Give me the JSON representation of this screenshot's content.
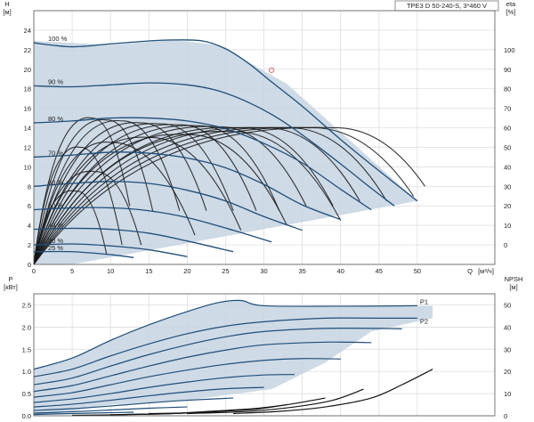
{
  "title": "TPE3 D 50-240-S, 3*460 V",
  "colors": {
    "region_fill": "#c5d3e2",
    "speed_curve": "#1f4e79",
    "efficiency_curve": "#141414",
    "grid": "#d9d9d9",
    "marker": "#e06666"
  },
  "chart_data": [
    {
      "type": "line",
      "name": "pump-curve",
      "xlabel": "Q",
      "xunit": "[м³/ч]",
      "ylabel": "H",
      "yunit": "[м]",
      "y2label": "eta",
      "y2unit": "[%]",
      "xlim": [
        0,
        55
      ],
      "ylim": [
        0,
        26
      ],
      "y2lim": [
        -10,
        120
      ],
      "xticks": [
        0,
        5,
        10,
        15,
        20,
        25,
        30,
        35,
        40,
        45,
        50
      ],
      "yticks": [
        0,
        2,
        4,
        6,
        8,
        10,
        12,
        14,
        16,
        18,
        20,
        22,
        24
      ],
      "y2ticks": [
        0,
        10,
        20,
        30,
        40,
        50,
        60,
        70,
        80,
        90,
        100
      ],
      "grid": true,
      "region_boundary": [
        [
          0,
          22.9
        ],
        [
          10,
          22.5
        ],
        [
          18,
          23
        ],
        [
          24,
          22.5
        ],
        [
          33,
          18.5
        ],
        [
          50,
          6.5
        ],
        [
          5,
          0
        ],
        [
          0,
          0
        ]
      ],
      "series": [
        {
          "name": "100 %",
          "x": [
            0,
            5,
            10,
            15,
            18,
            22,
            25,
            28,
            31,
            35,
            40,
            45,
            50
          ],
          "y": [
            22.7,
            22.3,
            22.6,
            22.9,
            23.0,
            22.9,
            22.1,
            20.6,
            18.7,
            16.2,
            12.8,
            9.6,
            6.5
          ]
        },
        {
          "name": "90 %",
          "x": [
            0,
            5,
            10,
            15,
            20,
            24,
            28,
            32,
            36,
            40,
            44,
            47
          ],
          "y": [
            18.3,
            18.2,
            18.4,
            18.6,
            18.4,
            17.8,
            16.6,
            14.9,
            12.7,
            10.3,
            7.8,
            6.0
          ]
        },
        {
          "name": "80 %",
          "x": [
            0,
            5,
            10,
            15,
            20,
            25,
            30,
            35,
            40,
            44
          ],
          "y": [
            14.5,
            14.7,
            15.0,
            15.0,
            14.7,
            13.9,
            12.4,
            10.4,
            7.7,
            5.6
          ]
        },
        {
          "name": "70 %",
          "x": [
            0,
            5,
            10,
            15,
            20,
            25,
            30,
            35,
            40
          ],
          "y": [
            11.0,
            11.2,
            11.5,
            11.4,
            10.9,
            9.9,
            8.2,
            6.1,
            4.6
          ]
        },
        {
          "name": "60 %",
          "x": [
            0,
            5,
            10,
            15,
            20,
            25,
            30,
            35
          ],
          "y": [
            8.0,
            8.3,
            8.5,
            8.3,
            7.6,
            6.5,
            4.9,
            3.5
          ]
        },
        {
          "name": "50 %",
          "x": [
            0,
            5,
            10,
            15,
            20,
            26,
            31
          ],
          "y": [
            5.6,
            5.8,
            5.8,
            5.5,
            4.8,
            3.5,
            2.3
          ]
        },
        {
          "name": "40 %",
          "x": [
            0,
            5,
            10,
            15,
            20,
            26
          ],
          "y": [
            3.6,
            3.7,
            3.6,
            3.2,
            2.4,
            1.3
          ]
        },
        {
          "name": "30 %",
          "x": [
            0,
            5,
            10,
            15,
            20
          ],
          "y": [
            2.0,
            2.1,
            1.9,
            1.5,
            0.8
          ]
        },
        {
          "name": "25 %",
          "x": [
            0,
            5,
            10,
            13
          ],
          "y": [
            1.3,
            1.3,
            1.0,
            0.7
          ]
        }
      ],
      "efficiency_curves": [
        {
          "peak_x": 7.5,
          "peak_y": 15.0,
          "end_x": 12.5,
          "end_y": 6.0
        },
        {
          "peak_x": 9.5,
          "peak_y": 14.8,
          "end_x": 15.5,
          "end_y": 5.5
        },
        {
          "peak_x": 11.5,
          "peak_y": 14.7,
          "end_x": 19.0,
          "end_y": 5.5
        },
        {
          "peak_x": 14.0,
          "peak_y": 14.5,
          "end_x": 22.5,
          "end_y": 5.5
        },
        {
          "peak_x": 16.5,
          "peak_y": 14.4,
          "end_x": 26.0,
          "end_y": 5.5
        },
        {
          "peak_x": 19.0,
          "peak_y": 14.3,
          "end_x": 29.0,
          "end_y": 5.5
        },
        {
          "peak_x": 21.5,
          "peak_y": 14.2,
          "end_x": 32.0,
          "end_y": 5.5
        },
        {
          "peak_x": 24.0,
          "peak_y": 14.1,
          "end_x": 35.5,
          "end_y": 6.0
        },
        {
          "peak_x": 27.0,
          "peak_y": 14.0,
          "end_x": 39.0,
          "end_y": 6.0
        },
        {
          "peak_x": 30.0,
          "peak_y": 14.0,
          "end_x": 42.5,
          "end_y": 6.5
        },
        {
          "peak_x": 33.0,
          "peak_y": 14.0,
          "end_x": 46.0,
          "end_y": 6.5
        },
        {
          "peak_x": 36.0,
          "peak_y": 14.0,
          "end_x": 49.5,
          "end_y": 7.0
        },
        {
          "peak_x": 39.0,
          "peak_y": 14.0,
          "end_x": 51.0,
          "end_y": 8.0
        },
        {
          "peak_x": 6.0,
          "peak_y": 12.0,
          "end_x": 11.5,
          "end_y": 2.0
        },
        {
          "peak_x": 10.0,
          "peak_y": 12.5,
          "end_x": 21.0,
          "end_y": 3.0
        },
        {
          "peak_x": 15.0,
          "peak_y": 13.0,
          "end_x": 27.0,
          "end_y": 3.5
        },
        {
          "peak_x": 20.0,
          "peak_y": 13.3,
          "end_x": 33.0,
          "end_y": 4.0
        },
        {
          "peak_x": 26.0,
          "peak_y": 13.6,
          "end_x": 40.0,
          "end_y": 4.5
        },
        {
          "peak_x": 5.5,
          "peak_y": 7.5,
          "end_x": 9.5,
          "end_y": 1.0
        },
        {
          "peak_x": 8.0,
          "peak_y": 9.5,
          "end_x": 14.0,
          "end_y": 2.0
        }
      ],
      "marker": {
        "x": 31,
        "y": 19.9
      }
    },
    {
      "type": "line",
      "name": "power-npsh",
      "xlabel": "",
      "ylabel": "P",
      "yunit": "[кВт]",
      "y2label": "NPSH",
      "y2unit": "[м]",
      "xlim": [
        0,
        55
      ],
      "ylim": [
        0,
        2.75
      ],
      "y2lim": [
        0,
        55
      ],
      "yticks": [
        0,
        0.5,
        1.0,
        1.5,
        2.0,
        2.5
      ],
      "yticklabels": [
        "0.0",
        "0.5",
        "1.0",
        "1.5",
        "2.0",
        "2.5"
      ],
      "y2ticks": [
        0,
        10,
        20,
        30,
        40,
        50
      ],
      "grid": true,
      "region_boundary": [
        [
          0,
          1.05
        ],
        [
          5,
          1.3
        ],
        [
          10,
          1.7
        ],
        [
          15,
          2.05
        ],
        [
          20,
          2.35
        ],
        [
          24,
          2.55
        ],
        [
          27,
          2.6
        ],
        [
          30,
          2.48
        ],
        [
          52,
          2.48
        ],
        [
          52,
          2.2
        ],
        [
          44,
          1.9
        ],
        [
          38,
          1.2
        ],
        [
          31,
          0.6
        ],
        [
          20,
          0.35
        ],
        [
          10,
          0.25
        ],
        [
          3,
          0.05
        ],
        [
          0,
          0
        ]
      ],
      "series": [
        {
          "name": "P1",
          "x": [
            0,
            5,
            10,
            15,
            20,
            24,
            27,
            30,
            40,
            50
          ],
          "y": [
            1.05,
            1.3,
            1.7,
            2.05,
            2.35,
            2.55,
            2.6,
            2.48,
            2.47,
            2.48
          ]
        },
        {
          "name": "P2",
          "x": [
            0,
            5,
            10,
            15,
            20,
            25,
            30,
            38,
            45,
            50
          ],
          "y": [
            0.88,
            1.05,
            1.35,
            1.62,
            1.85,
            2.02,
            2.12,
            2.2,
            2.2,
            2.2
          ]
        },
        {
          "name": "",
          "x": [
            0,
            5,
            10,
            15,
            20,
            25,
            30,
            38,
            45,
            48
          ],
          "y": [
            0.7,
            0.85,
            1.12,
            1.38,
            1.6,
            1.78,
            1.9,
            1.97,
            1.97,
            1.96
          ]
        },
        {
          "name": "",
          "x": [
            0,
            5,
            10,
            15,
            20,
            25,
            30,
            38,
            44
          ],
          "y": [
            0.55,
            0.68,
            0.9,
            1.12,
            1.32,
            1.48,
            1.6,
            1.66,
            1.65
          ]
        },
        {
          "name": "",
          "x": [
            0,
            5,
            10,
            15,
            20,
            25,
            30,
            35,
            40
          ],
          "y": [
            0.42,
            0.52,
            0.7,
            0.88,
            1.03,
            1.16,
            1.25,
            1.29,
            1.28
          ]
        },
        {
          "name": "",
          "x": [
            0,
            5,
            10,
            15,
            20,
            25,
            30,
            34
          ],
          "y": [
            0.3,
            0.38,
            0.5,
            0.64,
            0.76,
            0.86,
            0.92,
            0.93
          ]
        },
        {
          "name": "",
          "x": [
            0,
            5,
            10,
            15,
            20,
            25,
            30
          ],
          "y": [
            0.2,
            0.26,
            0.35,
            0.45,
            0.54,
            0.61,
            0.64
          ]
        },
        {
          "name": "",
          "x": [
            0,
            5,
            10,
            15,
            20,
            26
          ],
          "y": [
            0.12,
            0.16,
            0.22,
            0.29,
            0.35,
            0.4
          ]
        },
        {
          "name": "",
          "x": [
            0,
            5,
            10,
            15,
            20
          ],
          "y": [
            0.06,
            0.09,
            0.13,
            0.17,
            0.2
          ]
        },
        {
          "name": "",
          "x": [
            0,
            5,
            10,
            13
          ],
          "y": [
            0.03,
            0.05,
            0.07,
            0.08
          ]
        }
      ],
      "npsh_curves": [
        {
          "x": [
            26,
            32,
            38,
            44,
            48,
            52
          ],
          "y": [
            1,
            2,
            4,
            8,
            14,
            21
          ]
        },
        {
          "x": [
            20,
            28,
            34,
            39,
            43
          ],
          "y": [
            1,
            2,
            4,
            7,
            12
          ]
        },
        {
          "x": [
            15,
            22,
            28,
            33,
            38
          ],
          "y": [
            1,
            1.5,
            3,
            5,
            8
          ]
        },
        {
          "x": [
            10,
            18,
            24,
            29,
            33
          ],
          "y": [
            0.5,
            1,
            2,
            3,
            5
          ]
        },
        {
          "x": [
            5,
            12,
            18,
            23,
            28
          ],
          "y": [
            0.2,
            0.5,
            1,
            2,
            3
          ]
        }
      ]
    }
  ]
}
